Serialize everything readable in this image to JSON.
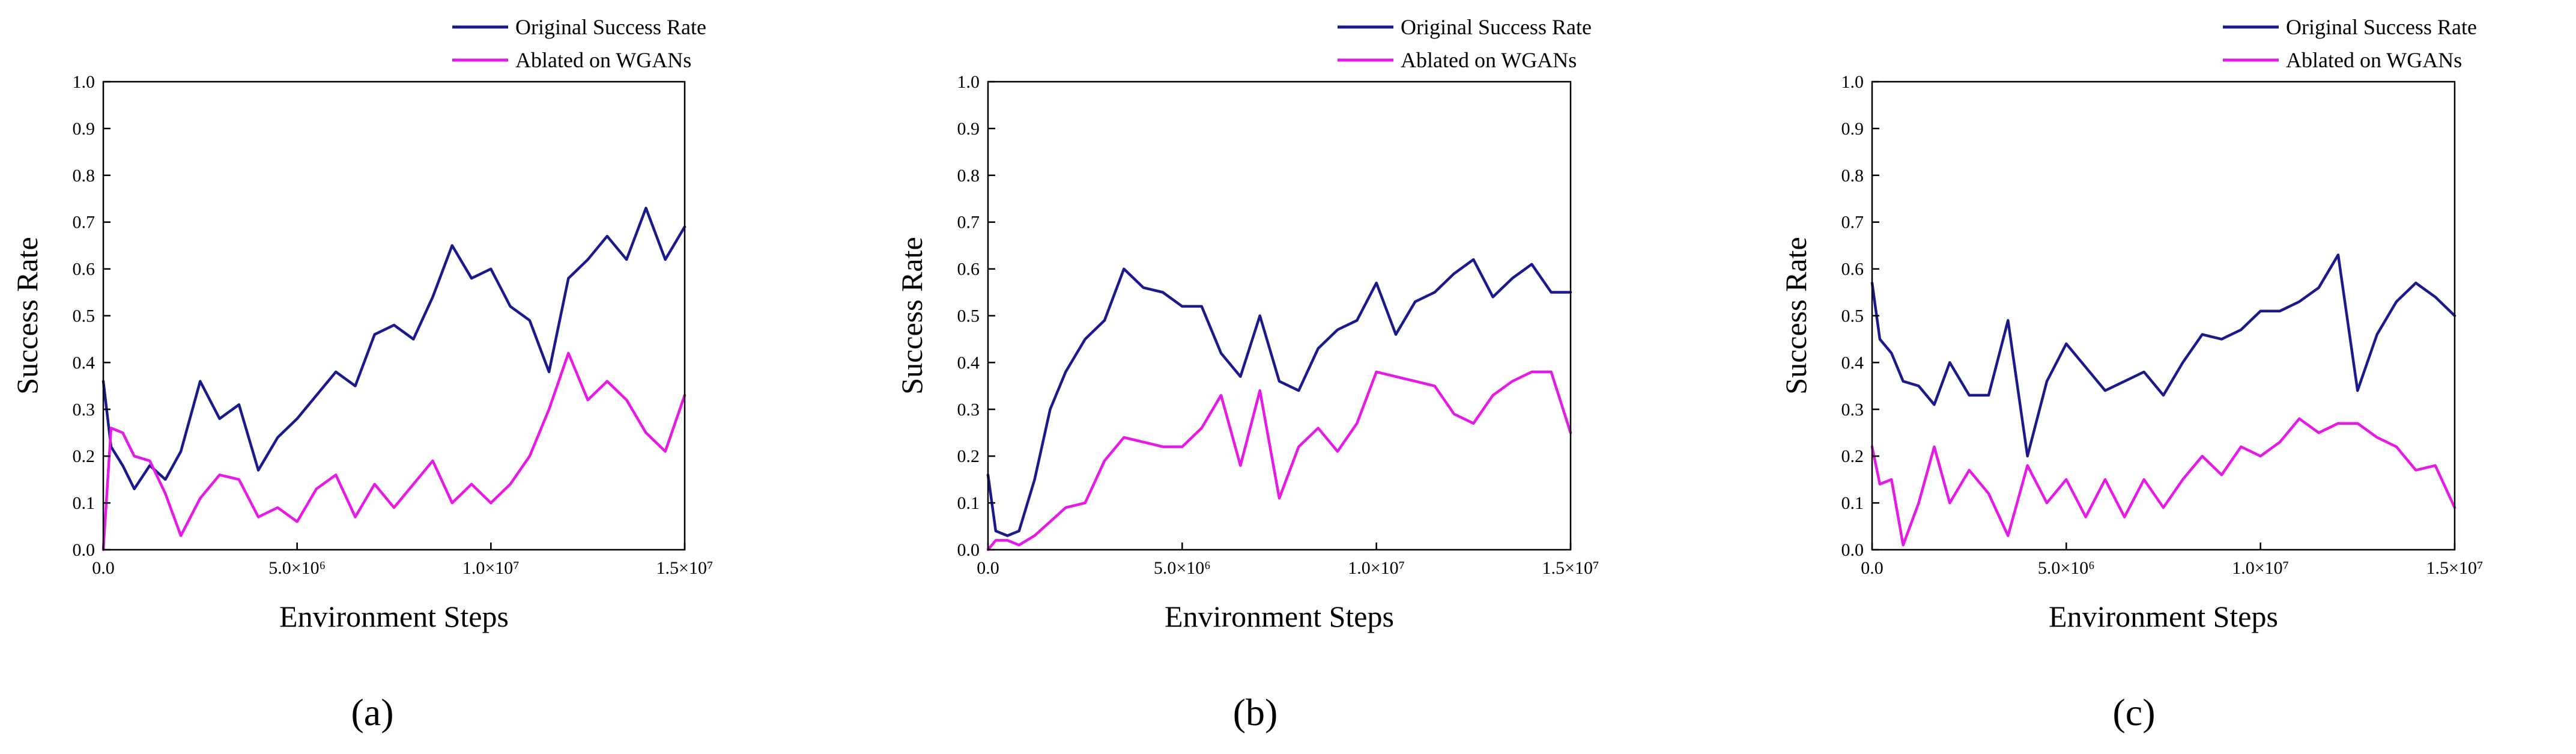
{
  "chart_data": [
    {
      "type": "line",
      "panel_label": "(a)",
      "title": "",
      "xlabel": "Environment Steps",
      "ylabel": "Success Rate",
      "xlim": [
        0,
        15000000
      ],
      "ylim": [
        0,
        1.0
      ],
      "xticks": [
        0,
        5000000,
        10000000,
        15000000
      ],
      "xtick_labels": [
        "0.0",
        "5.0×10⁶",
        "1.0×10⁷",
        "1.5×10⁷"
      ],
      "yticks": [
        0,
        0.1,
        0.2,
        0.3,
        0.4,
        0.5,
        0.6,
        0.7,
        0.8,
        0.9,
        1.0
      ],
      "ytick_labels": [
        "0.0",
        "0.1",
        "0.2",
        "0.3",
        "0.4",
        "0.5",
        "0.6",
        "0.7",
        "0.8",
        "0.9",
        "1.0"
      ],
      "grid": false,
      "legend_position": "top-right, outside above plot",
      "x": [
        0,
        200000,
        500000,
        800000,
        1200000,
        1600000,
        2000000,
        2500000,
        3000000,
        3500000,
        4000000,
        4500000,
        5000000,
        5500000,
        6000000,
        6500000,
        7000000,
        7500000,
        8000000,
        8500000,
        9000000,
        9500000,
        10000000,
        10500000,
        11000000,
        11500000,
        12000000,
        12500000,
        13000000,
        13500000,
        14000000,
        14500000,
        15000000
      ],
      "series": [
        {
          "name": "Original Success Rate",
          "color": "#1a1a8c",
          "values": [
            0.36,
            0.22,
            0.18,
            0.13,
            0.18,
            0.15,
            0.21,
            0.36,
            0.28,
            0.31,
            0.17,
            0.24,
            0.28,
            0.33,
            0.38,
            0.35,
            0.46,
            0.48,
            0.45,
            0.54,
            0.65,
            0.58,
            0.6,
            0.52,
            0.49,
            0.38,
            0.58,
            0.62,
            0.67,
            0.62,
            0.73,
            0.62,
            0.69
          ]
        },
        {
          "name": "Ablated on WGANs",
          "color": "#e619e6",
          "values": [
            0.0,
            0.26,
            0.25,
            0.2,
            0.19,
            0.12,
            0.03,
            0.11,
            0.16,
            0.15,
            0.07,
            0.09,
            0.06,
            0.13,
            0.16,
            0.07,
            0.14,
            0.09,
            0.14,
            0.19,
            0.1,
            0.14,
            0.1,
            0.14,
            0.2,
            0.3,
            0.42,
            0.32,
            0.36,
            0.32,
            0.25,
            0.21,
            0.33
          ]
        }
      ]
    },
    {
      "type": "line",
      "panel_label": "(b)",
      "title": "",
      "xlabel": "Environment Steps",
      "ylabel": "Success Rate",
      "xlim": [
        0,
        15000000
      ],
      "ylim": [
        0,
        1.0
      ],
      "xticks": [
        0,
        5000000,
        10000000,
        15000000
      ],
      "xtick_labels": [
        "0.0",
        "5.0×10⁶",
        "1.0×10⁷",
        "1.5×10⁷"
      ],
      "yticks": [
        0,
        0.1,
        0.2,
        0.3,
        0.4,
        0.5,
        0.6,
        0.7,
        0.8,
        0.9,
        1.0
      ],
      "ytick_labels": [
        "0.0",
        "0.1",
        "0.2",
        "0.3",
        "0.4",
        "0.5",
        "0.6",
        "0.7",
        "0.8",
        "0.9",
        "1.0"
      ],
      "grid": false,
      "legend_position": "top-right, outside above plot",
      "x": [
        0,
        200000,
        500000,
        800000,
        1200000,
        1600000,
        2000000,
        2500000,
        3000000,
        3500000,
        4000000,
        4500000,
        5000000,
        5500000,
        6000000,
        6500000,
        7000000,
        7500000,
        8000000,
        8500000,
        9000000,
        9500000,
        10000000,
        10500000,
        11000000,
        11500000,
        12000000,
        12500000,
        13000000,
        13500000,
        14000000,
        14500000,
        15000000
      ],
      "series": [
        {
          "name": "Original Success Rate",
          "color": "#1a1a8c",
          "values": [
            0.16,
            0.04,
            0.03,
            0.04,
            0.15,
            0.3,
            0.38,
            0.45,
            0.49,
            0.6,
            0.56,
            0.55,
            0.52,
            0.52,
            0.42,
            0.37,
            0.5,
            0.36,
            0.34,
            0.43,
            0.47,
            0.49,
            0.57,
            0.46,
            0.53,
            0.55,
            0.59,
            0.62,
            0.54,
            0.58,
            0.61,
            0.55,
            0.55
          ]
        },
        {
          "name": "Ablated on WGANs",
          "color": "#e619e6",
          "values": [
            0.0,
            0.02,
            0.02,
            0.01,
            0.03,
            0.06,
            0.09,
            0.1,
            0.19,
            0.24,
            0.23,
            0.22,
            0.22,
            0.26,
            0.33,
            0.18,
            0.34,
            0.11,
            0.22,
            0.26,
            0.21,
            0.27,
            0.38,
            0.37,
            0.36,
            0.35,
            0.29,
            0.27,
            0.33,
            0.36,
            0.38,
            0.38,
            0.25
          ]
        }
      ]
    },
    {
      "type": "line",
      "panel_label": "(c)",
      "title": "",
      "xlabel": "Environment Steps",
      "ylabel": "Success Rate",
      "xlim": [
        0,
        15000000
      ],
      "ylim": [
        0,
        1.0
      ],
      "xticks": [
        0,
        5000000,
        10000000,
        15000000
      ],
      "xtick_labels": [
        "0.0",
        "5.0×10⁶",
        "1.0×10⁷",
        "1.5×10⁷"
      ],
      "yticks": [
        0,
        0.1,
        0.2,
        0.3,
        0.4,
        0.5,
        0.6,
        0.7,
        0.8,
        0.9,
        1.0
      ],
      "ytick_labels": [
        "0.0",
        "0.1",
        "0.2",
        "0.3",
        "0.4",
        "0.5",
        "0.6",
        "0.7",
        "0.8",
        "0.9",
        "1.0"
      ],
      "grid": false,
      "legend_position": "top-right, outside above plot",
      "x": [
        0,
        200000,
        500000,
        800000,
        1200000,
        1600000,
        2000000,
        2500000,
        3000000,
        3500000,
        4000000,
        4500000,
        5000000,
        5500000,
        6000000,
        6500000,
        7000000,
        7500000,
        8000000,
        8500000,
        9000000,
        9500000,
        10000000,
        10500000,
        11000000,
        11500000,
        12000000,
        12500000,
        13000000,
        13500000,
        14000000,
        14500000,
        15000000
      ],
      "series": [
        {
          "name": "Original Success Rate",
          "color": "#1a1a8c",
          "values": [
            0.57,
            0.45,
            0.42,
            0.36,
            0.35,
            0.31,
            0.4,
            0.33,
            0.33,
            0.49,
            0.2,
            0.36,
            0.44,
            0.39,
            0.34,
            0.36,
            0.38,
            0.33,
            0.4,
            0.46,
            0.45,
            0.47,
            0.51,
            0.51,
            0.53,
            0.56,
            0.63,
            0.34,
            0.46,
            0.53,
            0.57,
            0.54,
            0.5
          ]
        },
        {
          "name": "Ablated on WGANs",
          "color": "#e619e6",
          "values": [
            0.22,
            0.14,
            0.15,
            0.01,
            0.1,
            0.22,
            0.1,
            0.17,
            0.12,
            0.03,
            0.18,
            0.1,
            0.15,
            0.07,
            0.15,
            0.07,
            0.15,
            0.09,
            0.15,
            0.2,
            0.16,
            0.22,
            0.2,
            0.23,
            0.28,
            0.25,
            0.27,
            0.27,
            0.24,
            0.22,
            0.17,
            0.18,
            0.09
          ]
        }
      ]
    }
  ]
}
